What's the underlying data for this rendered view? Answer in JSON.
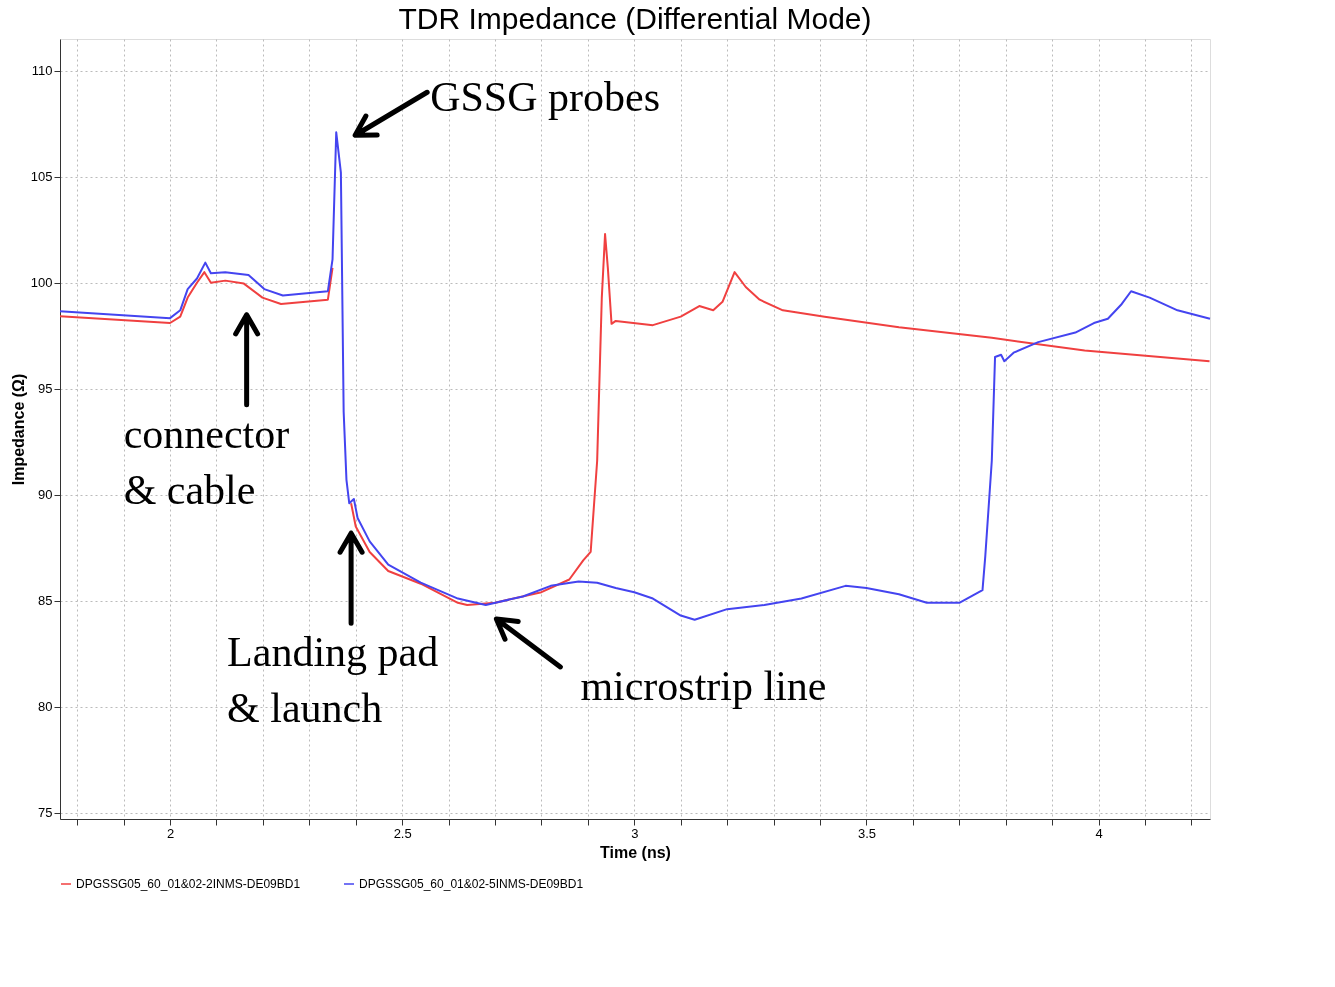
{
  "chart_data": {
    "type": "line",
    "title": "TDR Impedance (Differential Mode)",
    "xlabel": "Time (ns)",
    "ylabel": "Impedance (Ω)",
    "xlim": [
      1.763,
      4.24
    ],
    "ylim": [
      74.7,
      111.5
    ],
    "xticks": [
      {
        "value": 1.8,
        "label": null
      },
      {
        "value": 1.9,
        "label": null
      },
      2,
      {
        "value": 2.1,
        "label": null
      },
      {
        "value": 2.2,
        "label": null
      },
      {
        "value": 2.3,
        "label": null
      },
      {
        "value": 2.4,
        "label": null
      },
      2.5,
      {
        "value": 2.6,
        "label": null
      },
      {
        "value": 2.7,
        "label": null
      },
      {
        "value": 2.8,
        "label": null
      },
      {
        "value": 2.9,
        "label": null
      },
      3,
      {
        "value": 3.1,
        "label": null
      },
      {
        "value": 3.2,
        "label": null
      },
      {
        "value": 3.3,
        "label": null
      },
      {
        "value": 3.4,
        "label": null
      },
      3.5,
      {
        "value": 3.6,
        "label": null
      },
      {
        "value": 3.7,
        "label": null
      },
      {
        "value": 3.8,
        "label": null
      },
      {
        "value": 3.9,
        "label": null
      },
      4,
      {
        "value": 4.1,
        "label": null
      },
      {
        "value": 4.2,
        "label": null
      }
    ],
    "yticks": [
      75,
      80,
      85,
      90,
      95,
      100,
      105,
      110
    ],
    "grid": true,
    "legend": "bottom",
    "marker": "none",
    "line_style": "solid",
    "series": [
      {
        "name": "DPGSSG05_60_01&02-2INMS-DE09BD1",
        "color": "#f04040",
        "x": [
          1.763,
          2.0,
          2.022,
          2.038,
          2.058,
          2.074,
          2.088,
          2.119,
          2.159,
          2.199,
          2.239,
          2.34,
          2.35,
          2.36,
          2.368,
          2.374,
          2.38,
          2.39,
          2.4,
          2.43,
          2.47,
          2.54,
          2.62,
          2.64,
          2.7,
          2.8,
          2.86,
          2.89,
          2.906,
          2.92,
          2.93,
          2.937,
          2.943,
          2.951,
          2.96,
          3.04,
          3.1,
          3.14,
          3.17,
          3.19,
          3.216,
          3.24,
          3.27,
          3.32,
          3.41,
          3.57,
          3.77,
          3.97,
          4.239
        ],
        "values": [
          98.42,
          98.1,
          98.4,
          99.3,
          100.0,
          100.5,
          100.0,
          100.1,
          99.96,
          99.3,
          99.0,
          99.2,
          100.7,
          null,
          null,
          null,
          null,
          89.6,
          88.5,
          87.3,
          86.4,
          85.8,
          84.9,
          84.8,
          84.9,
          85.4,
          86.0,
          86.9,
          87.3,
          91.6,
          99.3,
          102.3,
          100.7,
          98.06,
          98.2,
          98.0,
          98.4,
          98.9,
          98.7,
          99.1,
          100.5,
          99.8,
          99.2,
          98.7,
          98.4,
          97.9,
          97.4,
          96.8,
          96.3
        ]
      },
      {
        "name": "DPGSSG05_60_01&02-5INMS-DE09BD1",
        "color": "#4444f0",
        "x": [
          1.763,
          2.0,
          2.022,
          2.038,
          2.058,
          2.076,
          2.088,
          2.119,
          2.169,
          2.203,
          2.243,
          2.34,
          2.35,
          2.358,
          2.368,
          2.374,
          2.38,
          2.386,
          2.396,
          2.404,
          2.43,
          2.47,
          2.54,
          2.62,
          2.68,
          2.76,
          2.82,
          2.88,
          2.92,
          2.96,
          3.0,
          3.04,
          3.1,
          3.13,
          3.2,
          3.28,
          3.36,
          3.455,
          3.5,
          3.57,
          3.63,
          3.7,
          3.75,
          3.756,
          3.77,
          3.777,
          3.79,
          3.797,
          3.817,
          3.87,
          3.95,
          3.99,
          4.02,
          4.05,
          4.07,
          4.11,
          4.17,
          4.24
        ],
        "values": [
          98.65,
          98.33,
          98.7,
          99.7,
          100.2,
          100.95,
          100.45,
          100.5,
          100.37,
          99.7,
          99.4,
          99.6,
          101.1,
          107.1,
          105.2,
          93.9,
          90.7,
          89.6,
          89.8,
          88.9,
          87.8,
          86.7,
          85.85,
          85.1,
          84.8,
          85.2,
          85.7,
          85.9,
          85.85,
          85.6,
          85.4,
          85.1,
          84.3,
          84.1,
          84.6,
          84.8,
          85.1,
          85.7,
          85.6,
          85.3,
          84.9,
          84.9,
          85.5,
          87.1,
          91.6,
          96.5,
          96.6,
          96.3,
          96.7,
          97.2,
          97.65,
          98.1,
          98.3,
          99.0,
          99.6,
          99.3,
          98.7,
          98.3
        ]
      }
    ],
    "annotations": [
      {
        "text": "GSSG probes",
        "x": 2.36,
        "y": 107.1
      },
      {
        "text": "connector\n& cable",
        "x": 2.165,
        "y": 99.9
      },
      {
        "text": "Landing pad\n& launch",
        "x": 2.39,
        "y": 89.6
      },
      {
        "text": "microstrip line",
        "x": 2.69,
        "y": 84.8
      }
    ]
  }
}
